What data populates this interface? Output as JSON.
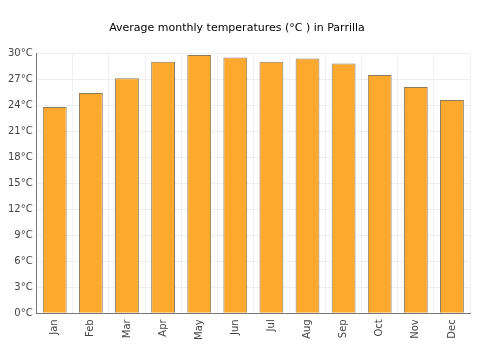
{
  "chart_data": {
    "type": "bar",
    "title": "Average monthly temperatures (°C ) in Parrilla",
    "categories": [
      "Jan",
      "Feb",
      "Mar",
      "Apr",
      "May",
      "Jun",
      "Jul",
      "Aug",
      "Sep",
      "Oct",
      "Nov",
      "Dec"
    ],
    "values": [
      23.8,
      25.4,
      27.1,
      29.0,
      29.8,
      29.5,
      29.0,
      29.4,
      28.8,
      27.5,
      26.1,
      24.6
    ],
    "color": "#fca92e",
    "ylim": [
      0,
      30
    ],
    "yticks": [
      {
        "value": 0,
        "label": "0°C"
      },
      {
        "value": 3,
        "label": "3°C"
      },
      {
        "value": 6,
        "label": "6°C"
      },
      {
        "value": 9,
        "label": "9°C"
      },
      {
        "value": 12,
        "label": "12°C"
      },
      {
        "value": 15,
        "label": "15°C"
      },
      {
        "value": 18,
        "label": "18°C"
      },
      {
        "value": 21,
        "label": "21°C"
      },
      {
        "value": 24,
        "label": "24°C"
      },
      {
        "value": 27,
        "label": "27°C"
      },
      {
        "value": 30,
        "label": "30°C"
      }
    ],
    "grid": true
  }
}
